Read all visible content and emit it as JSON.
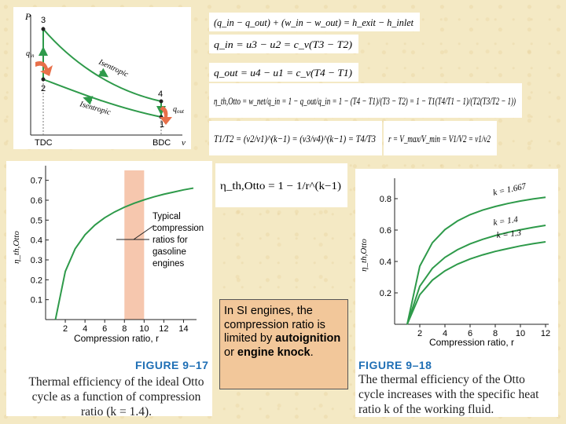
{
  "pv_diagram": {
    "y_axis": "P",
    "x_left": "TDC",
    "x_right": "BDC",
    "x_axis": "v",
    "states": [
      "1",
      "2",
      "3",
      "4"
    ],
    "q_in": "q",
    "q_in_sub": "in",
    "q_out": "q",
    "q_out_sub": "out",
    "upper_label": "Isentropic",
    "lower_label": "Isentropic"
  },
  "equations": {
    "energy_balance": "(q_in − q_out) + (w_in − w_out) = h_exit − h_inlet",
    "q_in": "q_in = u3 − u2 = c_v(T3 − T2)",
    "q_out": "q_out = u4 − u1 = c_v(T4 − T1)",
    "efficiency": "η_th,Otto = w_net/q_in = 1 − q_out/q_in = 1 − (T4 − T1)/(T3 − T2) = 1 − T1(T4/T1 − 1)/(T2(T3/T2 − 1))",
    "temperature_ratio": "T1/T2 = (v2/v1)^(k−1) = (v3/v4)^(k−1) = T4/T3",
    "compression_ratio": "r = V_max/V_min = V1/V2 = v1/v2",
    "efficiency_compact": "η_th,Otto = 1 − 1/r^(k−1)"
  },
  "chart_data": [
    {
      "type": "line",
      "title": "",
      "xlabel": "Compression ratio, r",
      "ylabel": "η_th,Otto",
      "xlim": [
        0,
        15
      ],
      "ylim": [
        0,
        0.75
      ],
      "x_ticks": [
        "2",
        "4",
        "6",
        "8",
        "10",
        "12",
        "14"
      ],
      "y_ticks": [
        "0.1",
        "0.2",
        "0.3",
        "0.4",
        "0.5",
        "0.6",
        "0.7"
      ],
      "shaded_region": [
        8,
        10
      ],
      "annotation": [
        "Typical",
        "compression",
        "ratios for",
        "gasoline",
        "engines"
      ],
      "series": [
        {
          "k": 1.4,
          "x": [
            1,
            2,
            3,
            4,
            5,
            6,
            7,
            8,
            9,
            10,
            11,
            12,
            13,
            14,
            15
          ],
          "values": [
            0,
            0.242,
            0.356,
            0.426,
            0.475,
            0.512,
            0.541,
            0.565,
            0.585,
            0.602,
            0.617,
            0.63,
            0.641,
            0.652,
            0.661
          ]
        }
      ]
    },
    {
      "type": "line",
      "title": "",
      "xlabel": "Compression ratio, r",
      "ylabel": "η_th,Otto",
      "xlim": [
        0,
        12
      ],
      "ylim": [
        0,
        0.9
      ],
      "x_ticks": [
        "2",
        "4",
        "6",
        "8",
        "10",
        "12"
      ],
      "y_ticks": [
        "0.2",
        "0.4",
        "0.6",
        "0.8"
      ],
      "series": [
        {
          "name": "k = 1.667",
          "x": [
            1,
            2,
            3,
            4,
            5,
            6,
            7,
            8,
            9,
            10,
            11,
            12
          ],
          "values": [
            0,
            0.37,
            0.519,
            0.603,
            0.658,
            0.698,
            0.727,
            0.75,
            0.769,
            0.785,
            0.798,
            0.809
          ]
        },
        {
          "name": "k = 1.4",
          "x": [
            1,
            2,
            3,
            4,
            5,
            6,
            7,
            8,
            9,
            10,
            11,
            12
          ],
          "values": [
            0,
            0.242,
            0.356,
            0.426,
            0.475,
            0.512,
            0.541,
            0.565,
            0.585,
            0.602,
            0.617,
            0.63
          ]
        },
        {
          "name": "k = 1.3",
          "x": [
            1,
            2,
            3,
            4,
            5,
            6,
            7,
            8,
            9,
            10,
            11,
            12
          ],
          "values": [
            0,
            0.188,
            0.281,
            0.34,
            0.383,
            0.416,
            0.442,
            0.464,
            0.482,
            0.499,
            0.513,
            0.525
          ]
        }
      ]
    }
  ],
  "note": {
    "part1": "In SI engines, the compression ratio is limited by ",
    "bold1": "autoignition",
    "part2": " or ",
    "bold2": "engine knock",
    "part3": "."
  },
  "figure_17": {
    "label": "FIGURE 9–17",
    "caption": [
      "Thermal efficiency of the ideal Otto",
      "cycle as a function of compression",
      "ratio (k = 1.4)."
    ]
  },
  "figure_18": {
    "label": "FIGURE 9–18",
    "caption": [
      "The thermal efficiency of the Otto",
      "cycle increases with the specific heat",
      "ratio k of the working fluid."
    ]
  },
  "colors": {
    "curve": "#2e9a4a",
    "shade": "#f6c7ae",
    "figure_label": "#1f6fb5",
    "background": "#f4e9c4",
    "note_box": "#f2c79a",
    "arrow": "#e8704a"
  }
}
